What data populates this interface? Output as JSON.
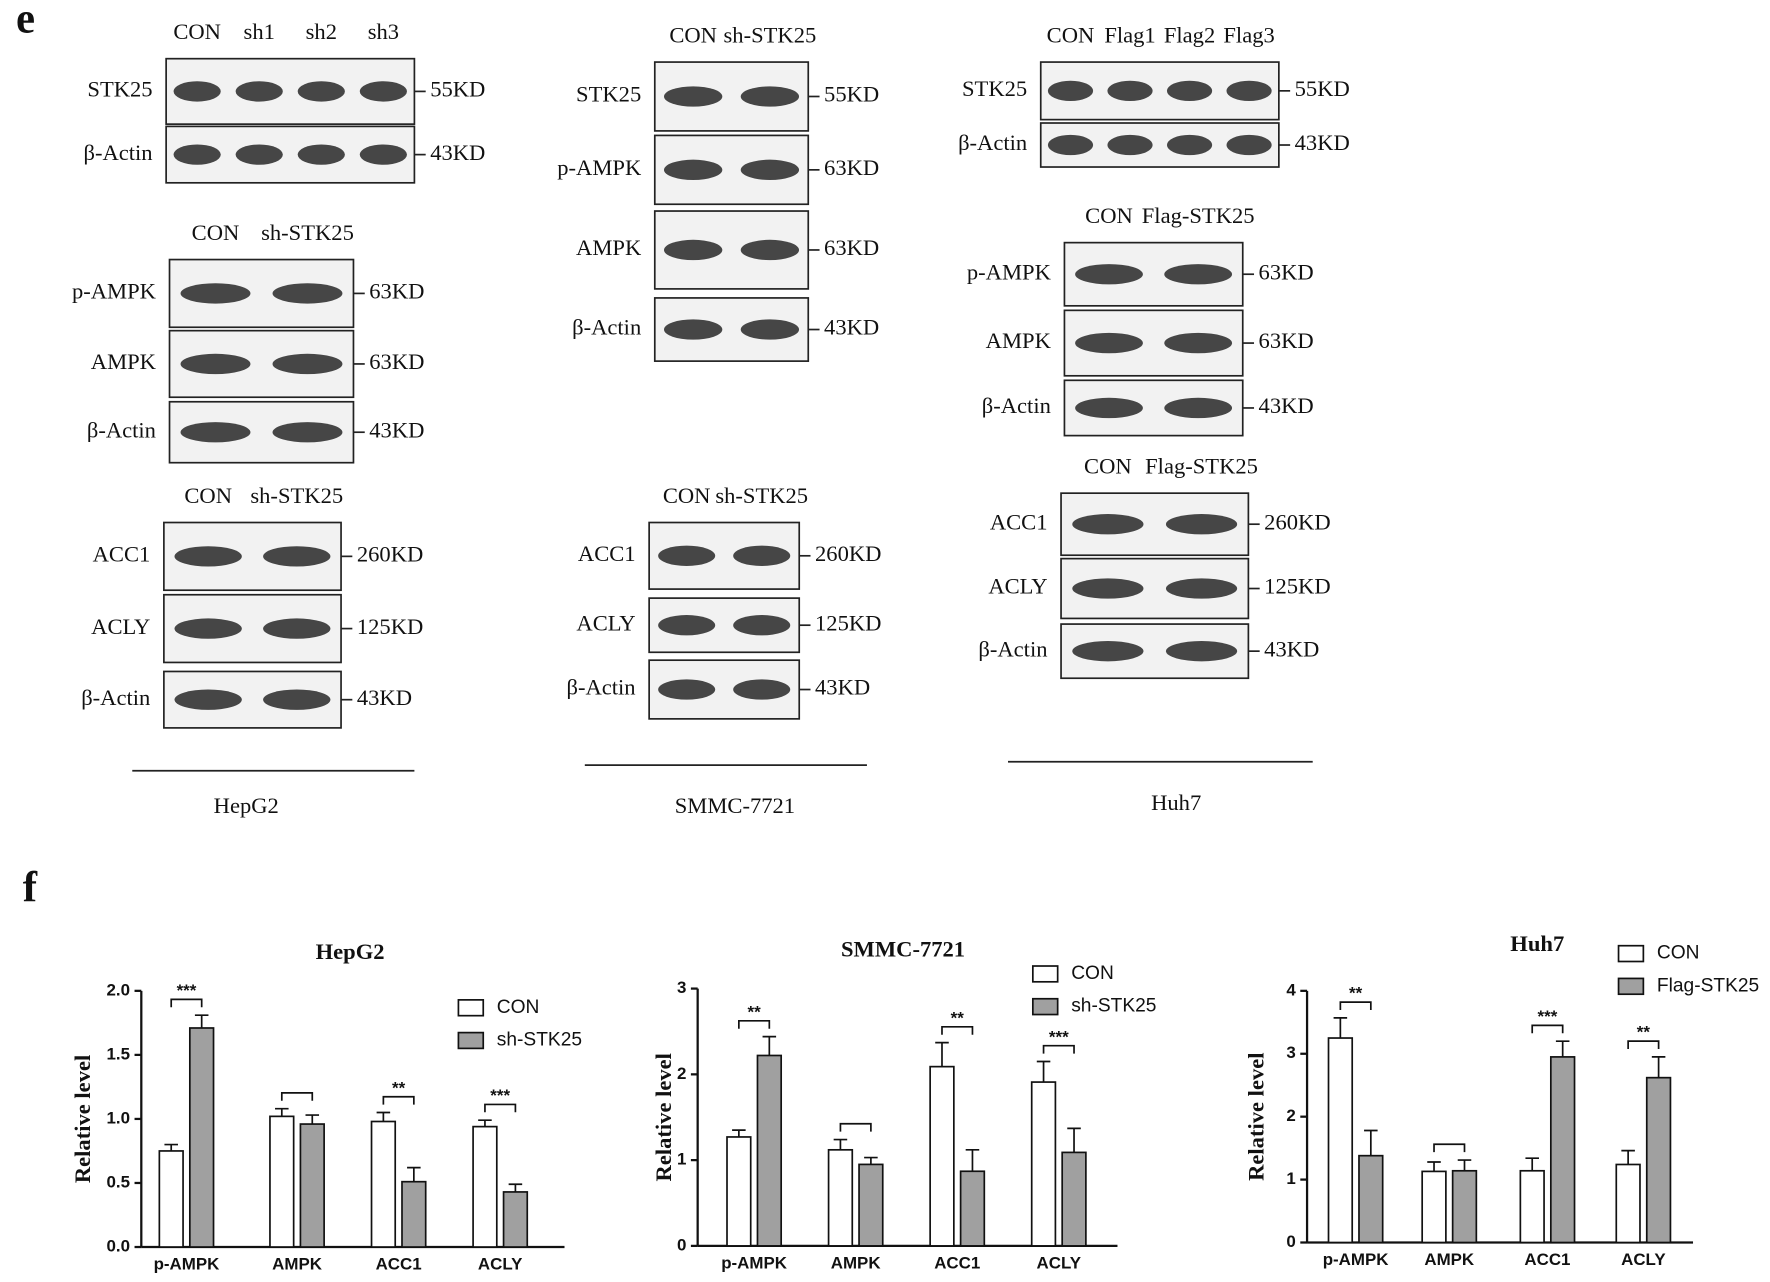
{
  "panel_labels": [
    "e",
    "f"
  ],
  "blots": [
    {
      "lanes": [
        "CON",
        "sh1",
        "sh2",
        "sh3"
      ],
      "rows": [
        {
          "label": "STK25",
          "size": "55KD"
        },
        {
          "label": "β-Actin",
          "size": "43KD"
        }
      ]
    },
    {
      "lanes": [
        "CON",
        "sh-STK25"
      ],
      "rows": [
        {
          "label": "p-AMPK",
          "size": "63KD"
        },
        {
          "label": "AMPK",
          "size": "63KD"
        },
        {
          "label": "β-Actin",
          "size": "43KD"
        }
      ]
    },
    {
      "lanes": [
        "CON",
        "sh-STK25"
      ],
      "rows": [
        {
          "label": "ACC1",
          "size": "260KD"
        },
        {
          "label": "ACLY",
          "size": "125KD"
        },
        {
          "label": "β-Actin",
          "size": "43KD"
        }
      ]
    },
    {
      "lanes": [
        "CON",
        "sh-STK25"
      ],
      "rows": [
        {
          "label": "STK25",
          "size": "55KD"
        },
        {
          "label": "p-AMPK",
          "size": "63KD"
        },
        {
          "label": "AMPK",
          "size": "63KD"
        },
        {
          "label": "β-Actin",
          "size": "43KD"
        }
      ]
    },
    {
      "lanes": [
        "CON",
        "sh-STK25"
      ],
      "rows": [
        {
          "label": "ACC1",
          "size": "260KD"
        },
        {
          "label": "ACLY",
          "size": "125KD"
        },
        {
          "label": "β-Actin",
          "size": "43KD"
        }
      ]
    },
    {
      "lanes": [
        "CON",
        "Flag1",
        "Flag2",
        "Flag3"
      ],
      "rows": [
        {
          "label": "STK25",
          "size": "55KD"
        },
        {
          "label": "β-Actin",
          "size": "43KD"
        }
      ]
    },
    {
      "lanes": [
        "CON",
        "Flag-STK25"
      ],
      "rows": [
        {
          "label": "p-AMPK",
          "size": "63KD"
        },
        {
          "label": "AMPK",
          "size": "63KD"
        },
        {
          "label": "β-Actin",
          "size": "43KD"
        }
      ]
    },
    {
      "lanes": [
        "CON",
        "Flag-STK25"
      ],
      "rows": [
        {
          "label": "ACC1",
          "size": "260KD"
        },
        {
          "label": "ACLY",
          "size": "125KD"
        },
        {
          "label": "β-Actin",
          "size": "43KD"
        }
      ]
    }
  ],
  "cell_lines": [
    "HepG2",
    "SMMC-7721",
    "Huh7"
  ],
  "chart_data": [
    {
      "type": "bar",
      "title": "HepG2",
      "y_label": "Relative level",
      "categories": [
        "p-AMPK",
        "AMPK",
        "ACC1",
        "ACLY"
      ],
      "series": [
        {
          "name": "CON",
          "color": "#ffffff",
          "values": [
            0.75,
            1.02,
            0.98,
            0.94
          ],
          "errors": [
            0.05,
            0.06,
            0.07,
            0.05
          ]
        },
        {
          "name": "sh-STK25",
          "color": "#a0a0a0",
          "values": [
            1.71,
            0.96,
            0.51,
            0.43
          ],
          "errors": [
            0.1,
            0.07,
            0.11,
            0.06
          ]
        }
      ],
      "significance": [
        "***",
        null,
        "**",
        "***"
      ],
      "ylim": [
        0,
        2
      ],
      "yticks": [
        {
          "value": 0,
          "label": "0.0"
        },
        {
          "value": 0.5,
          "label": "0.5"
        },
        {
          "value": 1,
          "label": "1.0"
        },
        {
          "value": 1.5,
          "label": "1.5"
        },
        {
          "value": 2,
          "label": "2.0"
        }
      ],
      "legend": "upper right"
    },
    {
      "type": "bar",
      "title": "SMMC-7721",
      "y_label": "Relative level",
      "categories": [
        "p-AMPK",
        "AMPK",
        "ACC1",
        "ACLY"
      ],
      "series": [
        {
          "name": "CON",
          "color": "#ffffff",
          "values": [
            1.27,
            1.12,
            2.09,
            1.91
          ],
          "errors": [
            0.08,
            0.12,
            0.28,
            0.24
          ]
        },
        {
          "name": "sh-STK25",
          "color": "#a0a0a0",
          "values": [
            2.22,
            0.95,
            0.87,
            1.09
          ],
          "errors": [
            0.22,
            0.08,
            0.25,
            0.28
          ]
        }
      ],
      "significance": [
        "**",
        null,
        "**",
        "***"
      ],
      "ylim": [
        0,
        3
      ],
      "yticks": [
        0,
        1,
        2,
        3
      ],
      "legend": "upper right"
    },
    {
      "type": "bar",
      "title": "Huh7",
      "y_label": "Relative level",
      "categories": [
        "p-AMPK",
        "AMPK",
        "ACC1",
        "ACLY"
      ],
      "series": [
        {
          "name": "CON",
          "color": "#ffffff",
          "values": [
            3.25,
            1.13,
            1.14,
            1.24
          ],
          "errors": [
            0.32,
            0.15,
            0.2,
            0.22
          ]
        },
        {
          "name": "Flag-STK25",
          "color": "#a0a0a0",
          "values": [
            1.38,
            1.14,
            2.95,
            2.62
          ],
          "errors": [
            0.4,
            0.17,
            0.25,
            0.33
          ]
        }
      ],
      "significance": [
        "**",
        null,
        "***",
        "**"
      ],
      "ylim": [
        0,
        4
      ],
      "yticks": [
        0,
        1,
        2,
        3,
        4
      ],
      "legend": "upper right"
    }
  ]
}
